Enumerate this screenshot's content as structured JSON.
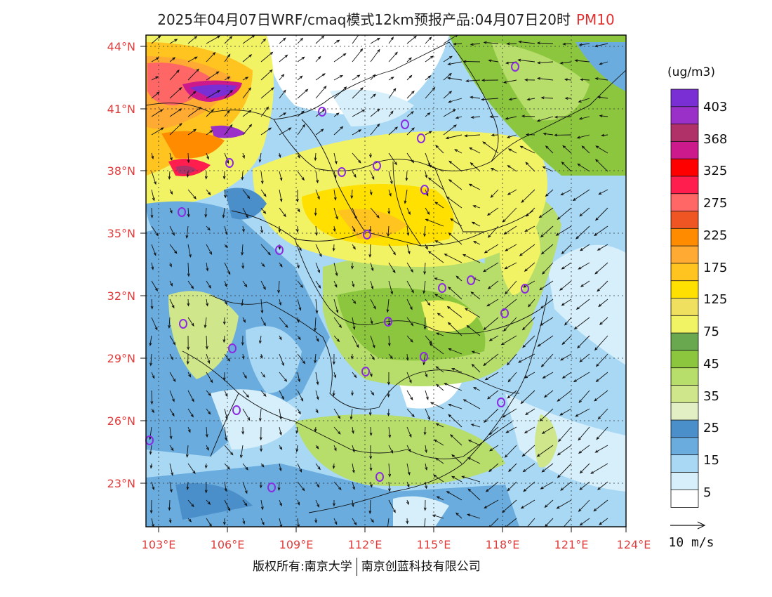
{
  "header": {
    "title": "2025年04月07日WRF/cmaq模式12km预报产品:04月07日20时",
    "product": "PM10"
  },
  "map": {
    "lat_labels": [
      "44°N",
      "41°N",
      "38°N",
      "35°N",
      "32°N",
      "29°N",
      "26°N",
      "23°N"
    ],
    "lon_labels": [
      "103°E",
      "106°E",
      "109°E",
      "112°E",
      "115°E",
      "118°E",
      "121°E",
      "124°E"
    ],
    "label_color": "#e03c3c"
  },
  "legend": {
    "unit": "(ug/m3)",
    "labels": [
      "403",
      "368",
      "325",
      "275",
      "225",
      "175",
      "125",
      "75",
      "45",
      "35",
      "25",
      "15",
      "5"
    ],
    "colors": [
      "#7a2fd4",
      "#9b30c8",
      "#b03068",
      "#cc1a8c",
      "#ff0000",
      "#ff1e4e",
      "#ff6666",
      "#ee5522",
      "#ff8c00",
      "#ffaa33",
      "#ffc420",
      "#ffe000",
      "#f0e060",
      "#f2f265",
      "#6aa84f",
      "#8cc63f",
      "#b7dd6a",
      "#cfe68a",
      "#e2efc5",
      "#4a8fc9",
      "#6aacde",
      "#a8d8f4",
      "#d6effa",
      "#ffffff"
    ]
  },
  "wind_scale": {
    "label": "10 m/s"
  },
  "footer": {
    "left": "版权所有:南京大学",
    "right": "南京创蓝科技有限公司"
  }
}
